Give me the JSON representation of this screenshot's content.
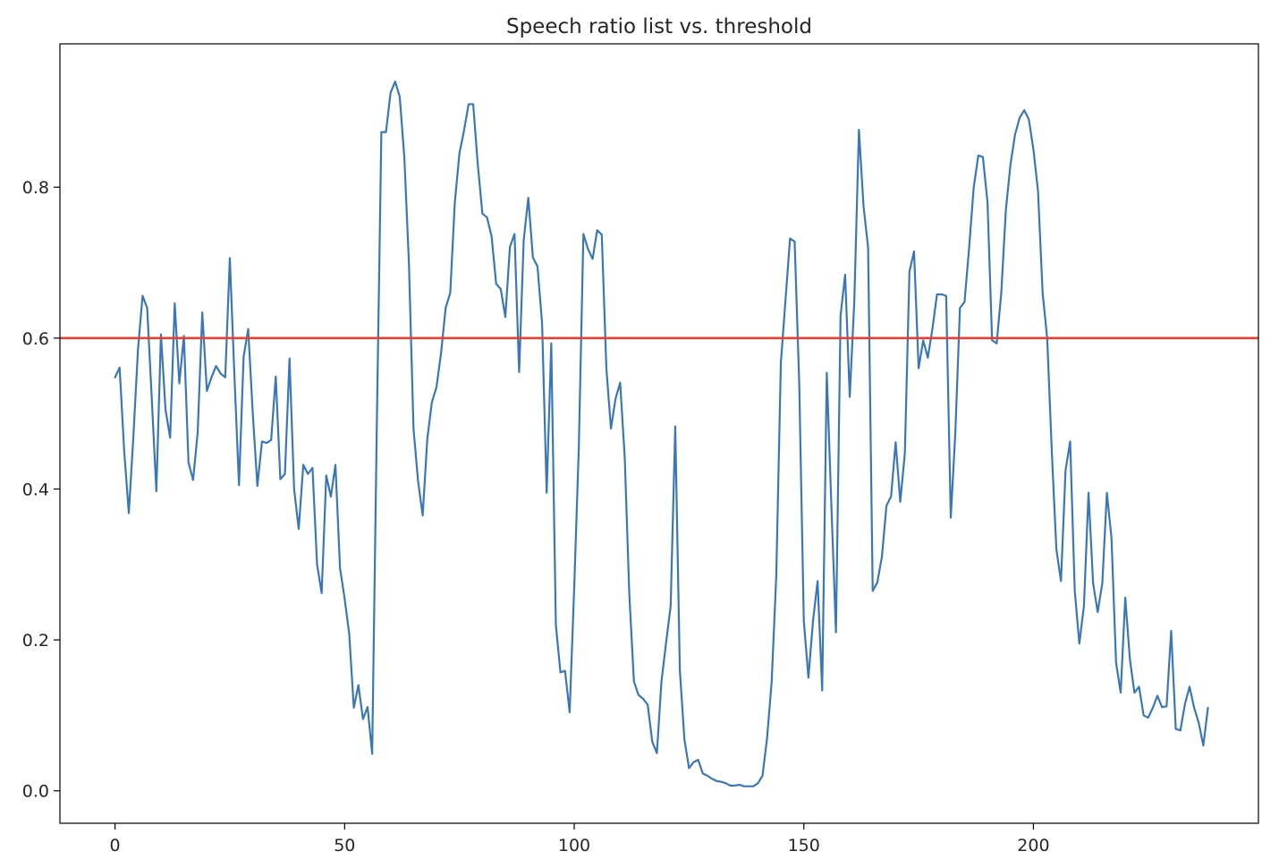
{
  "chart_data": {
    "type": "line",
    "title": "Speech ratio list vs. threshold",
    "xlabel": "",
    "ylabel": "",
    "xlim": [
      -12,
      249
    ],
    "ylim": [
      -0.043,
      0.99
    ],
    "x_ticks": [
      0,
      50,
      100,
      150,
      200
    ],
    "y_ticks": [
      0.0,
      0.2,
      0.4,
      0.6,
      0.8
    ],
    "x_tick_labels": [
      "0",
      "50",
      "100",
      "150",
      "200"
    ],
    "y_tick_labels": [
      "0.0",
      "0.2",
      "0.4",
      "0.6",
      "0.8"
    ],
    "grid": false,
    "legend": "none",
    "series": [
      {
        "color": "#3a78b5",
        "x_start": 0,
        "x_step": 1,
        "values": [
          0.548,
          0.561,
          0.45,
          0.368,
          0.47,
          0.585,
          0.656,
          0.64,
          0.52,
          0.397,
          0.605,
          0.505,
          0.468,
          0.646,
          0.54,
          0.603,
          0.435,
          0.412,
          0.475,
          0.634,
          0.53,
          0.548,
          0.563,
          0.553,
          0.548,
          0.706,
          0.55,
          0.405,
          0.575,
          0.612,
          0.5,
          0.404,
          0.463,
          0.461,
          0.465,
          0.549,
          0.413,
          0.42,
          0.573,
          0.4,
          0.347,
          0.432,
          0.42,
          0.428,
          0.3,
          0.262,
          0.418,
          0.39,
          0.432,
          0.295,
          0.255,
          0.208,
          0.11,
          0.14,
          0.095,
          0.111,
          0.049,
          0.48,
          0.873,
          0.873,
          0.925,
          0.94,
          0.92,
          0.84,
          0.7,
          0.48,
          0.41,
          0.365,
          0.466,
          0.515,
          0.535,
          0.58,
          0.64,
          0.66,
          0.78,
          0.845,
          0.875,
          0.91,
          0.91,
          0.83,
          0.765,
          0.76,
          0.735,
          0.672,
          0.665,
          0.628,
          0.721,
          0.738,
          0.555,
          0.73,
          0.786,
          0.707,
          0.695,
          0.62,
          0.395,
          0.593,
          0.22,
          0.157,
          0.159,
          0.104,
          0.27,
          0.455,
          0.738,
          0.718,
          0.705,
          0.743,
          0.737,
          0.56,
          0.48,
          0.52,
          0.541,
          0.442,
          0.26,
          0.145,
          0.127,
          0.122,
          0.114,
          0.065,
          0.05,
          0.145,
          0.196,
          0.245,
          0.483,
          0.16,
          0.068,
          0.03,
          0.038,
          0.041,
          0.023,
          0.02,
          0.016,
          0.013,
          0.012,
          0.01,
          0.007,
          0.007,
          0.008,
          0.006,
          0.006,
          0.006,
          0.01,
          0.02,
          0.07,
          0.145,
          0.285,
          0.567,
          0.65,
          0.732,
          0.728,
          0.54,
          0.225,
          0.15,
          0.225,
          0.278,
          0.133,
          0.554,
          0.378,
          0.21,
          0.63,
          0.684,
          0.522,
          0.65,
          0.876,
          0.775,
          0.72,
          0.265,
          0.276,
          0.31,
          0.378,
          0.39,
          0.462,
          0.383,
          0.447,
          0.688,
          0.715,
          0.56,
          0.597,
          0.574,
          0.612,
          0.658,
          0.658,
          0.656,
          0.362,
          0.475,
          0.64,
          0.648,
          0.72,
          0.8,
          0.842,
          0.84,
          0.78,
          0.597,
          0.593,
          0.66,
          0.77,
          0.83,
          0.87,
          0.892,
          0.902,
          0.89,
          0.85,
          0.795,
          0.66,
          0.6,
          0.45,
          0.32,
          0.278,
          0.425,
          0.463,
          0.265,
          0.195,
          0.245,
          0.395,
          0.275,
          0.237,
          0.275,
          0.395,
          0.335,
          0.17,
          0.13,
          0.256,
          0.175,
          0.13,
          0.138,
          0.1,
          0.097,
          0.11,
          0.126,
          0.111,
          0.112,
          0.212,
          0.082,
          0.08,
          0.115,
          0.138,
          0.11,
          0.09,
          0.06,
          0.11
        ]
      },
      {
        "color": "#e64030",
        "type": "hline",
        "y": 0.6
      }
    ]
  }
}
